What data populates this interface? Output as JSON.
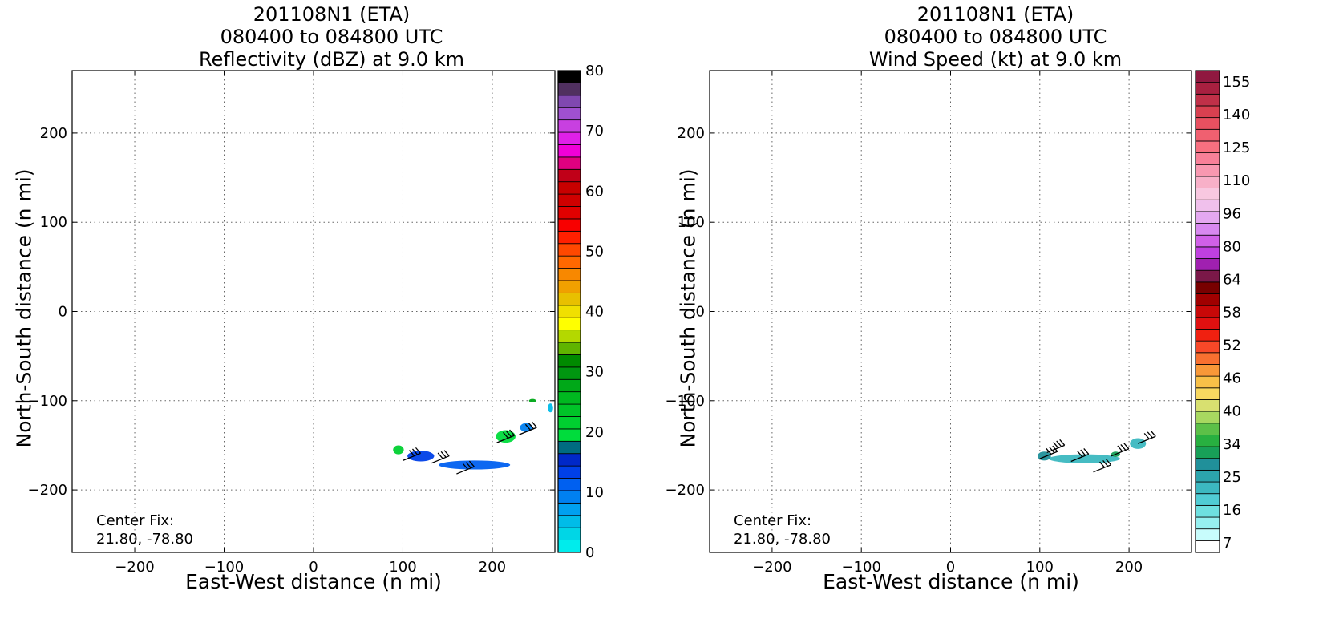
{
  "chart_data": [
    {
      "type": "heatmap",
      "title_lines": [
        "201108N1 (ETA)",
        "080400 to 084800 UTC",
        "Reflectivity (dBZ) at 9.0 km"
      ],
      "xlabel": "East-West distance (n mi)",
      "ylabel": "North-South distance (n mi)",
      "xlim": [
        -270,
        270
      ],
      "ylim": [
        -270,
        270
      ],
      "xticks": [
        -200,
        -100,
        0,
        100,
        200
      ],
      "yticks": [
        -200,
        -100,
        0,
        100,
        200
      ],
      "grid": true,
      "annotation": [
        "Center Fix:",
        "21.80, -78.80"
      ],
      "colorbar": {
        "range": [
          0,
          80
        ],
        "tick_values": [
          0,
          10,
          20,
          30,
          40,
          50,
          60,
          70,
          80
        ],
        "colors": [
          "#00ecec",
          "#00d6e6",
          "#00bce8",
          "#00a0f0",
          "#0080f0",
          "#0060f0",
          "#0040e8",
          "#0028c8",
          "#006b80",
          "#00dc3c",
          "#00d030",
          "#00c428",
          "#00b820",
          "#00a818",
          "#009610",
          "#008a00",
          "#60b400",
          "#b4d800",
          "#ffff00",
          "#f0e000",
          "#e8c000",
          "#f0a000",
          "#f88800",
          "#ff6800",
          "#ff4800",
          "#ff2000",
          "#f80000",
          "#e00000",
          "#d00000",
          "#c80000",
          "#c00018",
          "#e00080",
          "#f000d8",
          "#e020e8",
          "#c840e0",
          "#a050d0",
          "#8048b0",
          "#503060",
          "#000000"
        ]
      },
      "data_regions": [
        {
          "center_xy": [
            180,
            -172
          ],
          "extent_xy": [
            80,
            10
          ],
          "value": 11,
          "label": "dark-blue core"
        },
        {
          "center_xy": [
            120,
            -162
          ],
          "extent_xy": [
            30,
            12
          ],
          "value": 14,
          "label": "blue band"
        },
        {
          "center_xy": [
            95,
            -155
          ],
          "extent_xy": [
            12,
            10
          ],
          "value": 22,
          "label": "green fringe west"
        },
        {
          "center_xy": [
            215,
            -140
          ],
          "extent_xy": [
            22,
            14
          ],
          "value": 20,
          "label": "green fringe east"
        },
        {
          "center_xy": [
            238,
            -130
          ],
          "extent_xy": [
            14,
            10
          ],
          "value": 9,
          "label": "light blue patch"
        },
        {
          "center_xy": [
            265,
            -108
          ],
          "extent_xy": [
            6,
            10
          ],
          "value": 6,
          "label": "cyan edge"
        },
        {
          "center_xy": [
            245,
            -100
          ],
          "extent_xy": [
            8,
            4
          ],
          "value": 28,
          "label": "small green patch"
        }
      ],
      "wind_barbs": [
        {
          "x": 100,
          "y": -167
        },
        {
          "x": 132,
          "y": -170
        },
        {
          "x": 160,
          "y": -182
        },
        {
          "x": 205,
          "y": -147
        },
        {
          "x": 230,
          "y": -138
        }
      ]
    },
    {
      "type": "heatmap",
      "title_lines": [
        "201108N1 (ETA)",
        "080400 to 084800 UTC",
        "Wind Speed (kt) at 9.0 km"
      ],
      "xlabel": "East-West distance (n mi)",
      "ylabel": "North-South distance (n mi)",
      "xlim": [
        -270,
        270
      ],
      "ylim": [
        -270,
        270
      ],
      "xticks": [
        -200,
        -100,
        0,
        100,
        200
      ],
      "yticks": [
        -200,
        -100,
        0,
        100,
        200
      ],
      "grid": true,
      "annotation": [
        "Center Fix:",
        "21.80, -78.80"
      ],
      "colorbar": {
        "tick_labels": [
          "7",
          "16",
          "25",
          "34",
          "40",
          "46",
          "52",
          "58",
          "64",
          "80",
          "96",
          "110",
          "125",
          "140",
          "155"
        ],
        "colors": [
          "#ffffff",
          "#c8fcfc",
          "#96f0f0",
          "#6ee0e0",
          "#50ccd4",
          "#3cb8c0",
          "#2ca4ac",
          "#20909a",
          "#18a058",
          "#28b040",
          "#5cc048",
          "#a8d860",
          "#d8e070",
          "#f8d860",
          "#f8c048",
          "#f89838",
          "#f87030",
          "#f84828",
          "#f02010",
          "#e01010",
          "#c80808",
          "#a00000",
          "#780000",
          "#7a1848",
          "#a020b0",
          "#c040e0",
          "#d060e8",
          "#d888f0",
          "#e4a8f0",
          "#f0c0ec",
          "#f8c8e0",
          "#f8b0c8",
          "#f898b0",
          "#f88098",
          "#f87080",
          "#f06070",
          "#e85060",
          "#d84050",
          "#c03048",
          "#a82040",
          "#901840"
        ]
      },
      "data_regions": [
        {
          "center_xy": [
            150,
            -165
          ],
          "extent_xy": [
            80,
            10
          ],
          "value": 24,
          "label": "teal band"
        },
        {
          "center_xy": [
            105,
            -162
          ],
          "extent_xy": [
            15,
            10
          ],
          "value": 30,
          "label": "green core west"
        },
        {
          "center_xy": [
            210,
            -148
          ],
          "extent_xy": [
            18,
            12
          ],
          "value": 22,
          "label": "teal east"
        },
        {
          "center_xy": [
            185,
            -160
          ],
          "extent_xy": [
            10,
            6
          ],
          "value": 31,
          "label": "green patch east"
        }
      ],
      "wind_barbs": [
        {
          "x": 100,
          "y": -165
        },
        {
          "x": 135,
          "y": -168
        },
        {
          "x": 160,
          "y": -180
        },
        {
          "x": 180,
          "y": -162
        },
        {
          "x": 210,
          "y": -148
        },
        {
          "x": 108,
          "y": -158
        }
      ]
    }
  ]
}
